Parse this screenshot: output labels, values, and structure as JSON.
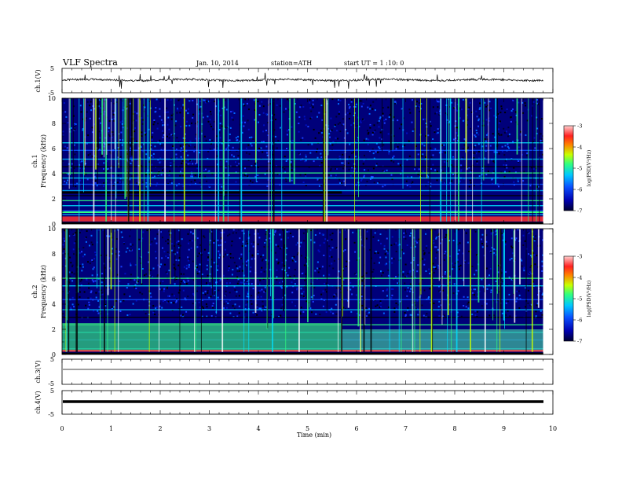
{
  "header": {
    "title": "VLF Spectra",
    "date": "Jan. 10, 2014",
    "station": "station=ATH",
    "start": "start  UT =   1 :10: 0"
  },
  "colors": {
    "colormap": [
      "#000000",
      "#0000a0",
      "#1a3fff",
      "#00a8ff",
      "#00e0ff",
      "#40ff60",
      "#c0ff00",
      "#ff4040",
      "#ffffff"
    ],
    "trace": "#000000",
    "axis": "#000000"
  },
  "chart_data": [
    {
      "type": "line",
      "ylabel": "ch.1(V)",
      "y_ticklabels": [
        "5",
        "-5"
      ],
      "ylim": [
        -5,
        5
      ],
      "xlim": [
        0,
        10
      ],
      "series": [
        {
          "values_desc": "noisy trace near +0.2 V with sparse negative spikes"
        }
      ]
    },
    {
      "type": "heatmap",
      "ylabel": "Frequency (kHz)",
      "channel_label": "ch.1",
      "y_ticklabels": [
        "0",
        "2",
        "4",
        "6",
        "8",
        "10"
      ],
      "ylim": [
        0,
        10
      ],
      "xlim": [
        0,
        9.8
      ],
      "colorbar": {
        "label": "log(PSD(V²/Hz)",
        "ticklabels": [
          "-3",
          "-4",
          "-5",
          "-6",
          "-7"
        ],
        "range": [
          -7,
          -3
        ]
      },
      "features": {
        "transition_min": 5.7,
        "low_freq_strong_band_khz": [
          0.2,
          0.6
        ],
        "tonal_lines_khz": [
          0.8,
          1.1,
          1.5,
          1.9,
          2.3,
          2.7,
          3.2,
          3.7,
          4.1,
          4.6,
          5.2,
          5.9,
          6.5
        ]
      }
    },
    {
      "type": "heatmap",
      "ylabel": "Frequency (kHz)",
      "channel_label": "ch.2",
      "y_ticklabels": [
        "0",
        "2",
        "4",
        "6",
        "8",
        "10"
      ],
      "ylim": [
        0,
        10
      ],
      "xlim": [
        0,
        9.8
      ],
      "colorbar": {
        "label": "log(PSD(V²/Hz)",
        "ticklabels": [
          "-3",
          "-4",
          "-5",
          "-6",
          "-7"
        ],
        "range": [
          -7,
          -3
        ]
      },
      "features": {
        "transition_min": 5.7,
        "low_freq_strong_band_khz": [
          0.3,
          2.5
        ],
        "tonal_lines_khz": [
          0.5,
          1.2,
          1.8,
          2.4,
          3.0,
          3.6,
          4.4,
          5.5,
          6.1
        ]
      }
    },
    {
      "type": "line",
      "ylabel": "ch.3(V)",
      "y_ticklabels": [
        "5",
        "-5"
      ],
      "ylim": [
        -5,
        5
      ],
      "xlim": [
        0,
        10
      ],
      "series": [
        {
          "values_desc": "flat near 0 V"
        }
      ]
    },
    {
      "type": "line",
      "ylabel": "ch.4(V)",
      "y_ticklabels": [
        "5",
        "-5"
      ],
      "ylim": [
        -5,
        5
      ],
      "xlim": [
        0,
        10
      ],
      "series": [
        {
          "values_desc": "thick constant band near 0 V"
        }
      ]
    }
  ],
  "xaxis": {
    "label": "Time (min)",
    "ticklabels": [
      "0",
      "1",
      "2",
      "3",
      "4",
      "5",
      "6",
      "7",
      "8",
      "9",
      "10"
    ]
  }
}
